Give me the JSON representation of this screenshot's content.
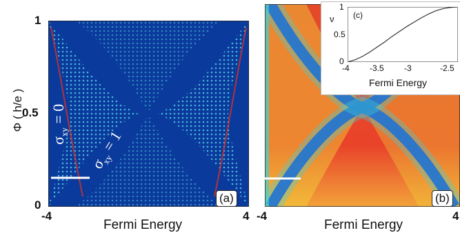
{
  "colors": {
    "background_blue": "#0a3a9c",
    "gap_white": "#ffffff",
    "hot_red": "#e8321e",
    "band_cyan": "#3fd0d8",
    "band_yellow": "#f2d43a"
  },
  "chart_data": [
    {
      "id": "a",
      "type": "heatmap",
      "panel_label": "(a)",
      "xlabel": "Fermi Energy",
      "ylabel": "Φ ( h/e )",
      "x_ticks": [
        "-4",
        "4"
      ],
      "y_ticks": [
        "0",
        "0.5",
        "1"
      ],
      "xlim": [
        -4,
        4
      ],
      "ylim": [
        0,
        1
      ],
      "annotations": [
        {
          "text": "σ",
          "sub": "xy",
          "rest": " = 0"
        },
        {
          "text": "σ",
          "sub": "xy",
          "rest": " = 1"
        }
      ],
      "marker_line_phi": 0.16
    },
    {
      "id": "b",
      "type": "heatmap",
      "panel_label": "(b)",
      "xlabel": "Fermi Energy",
      "x_ticks": [
        "-4",
        "4"
      ],
      "xlim": [
        -4,
        4
      ],
      "ylim": [
        0,
        1
      ],
      "marker_line_phi": 0.16
    },
    {
      "id": "c",
      "type": "line",
      "panel_label": "(c)",
      "xlabel": "Fermi Energy",
      "ylabel": "ν",
      "x_ticks": [
        "-4",
        "-3.5",
        "-3",
        "-2.5"
      ],
      "y_ticks": [
        "0",
        "0.5",
        "1"
      ],
      "xlim": [
        -4,
        -2.5
      ],
      "ylim": [
        0,
        1
      ],
      "series": [
        {
          "x": [
            -4.0,
            -3.9,
            -3.8,
            -3.7,
            -3.6,
            -3.5,
            -3.4,
            -3.3,
            -3.2,
            -3.1,
            -3.0,
            -2.9,
            -2.8,
            -2.7,
            -2.6,
            -2.5
          ],
          "y": [
            0.0,
            0.04,
            0.1,
            0.18,
            0.27,
            0.36,
            0.46,
            0.55,
            0.64,
            0.72,
            0.8,
            0.87,
            0.93,
            0.97,
            0.99,
            1.0
          ]
        }
      ]
    }
  ]
}
